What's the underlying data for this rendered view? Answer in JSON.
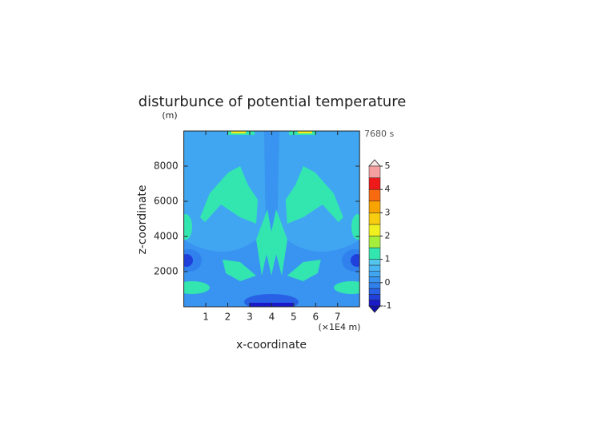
{
  "chart_data": {
    "type": "contour",
    "title": "disturbunce of potential temperature",
    "y_unit": "(m)",
    "time_label": "7680 s",
    "xlabel": "x-coordinate",
    "ylabel": "z-coordinate",
    "x_unit": "(×1E4 m)",
    "xlim": [
      0,
      8
    ],
    "xticks": [
      1,
      2,
      3,
      4,
      5,
      6,
      7
    ],
    "ylim": [
      0,
      10000
    ],
    "yticks": [
      2000,
      4000,
      6000,
      8000
    ],
    "colorbar": {
      "levels": [
        -1,
        -0.75,
        -0.5,
        -0.25,
        0,
        0.25,
        0.5,
        0.75,
        1,
        1.5,
        2,
        2.5,
        3,
        3.5,
        4,
        4.5,
        5
      ],
      "colors": [
        "#1a1ac8",
        "#2040dc",
        "#2860e6",
        "#3080ee",
        "#3894f0",
        "#40a6f2",
        "#4ab6f2",
        "#54c6ee",
        "#33e6b0",
        "#a6ee3c",
        "#f0f020",
        "#f8cc10",
        "#f8a400",
        "#f86a10",
        "#ee1a1a",
        "#f4a0a0"
      ],
      "ticks": [
        -1,
        0,
        1,
        2,
        3,
        4,
        5
      ]
    }
  }
}
